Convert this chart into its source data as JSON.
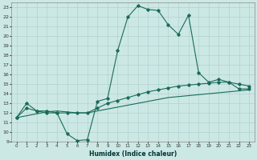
{
  "title": "",
  "xlabel": "Humidex (Indice chaleur)",
  "bg_color": "#cce8e4",
  "grid_color": "#aacccc",
  "line_color": "#1a6b5a",
  "xlim": [
    -0.5,
    23.5
  ],
  "ylim": [
    9,
    23.5
  ],
  "xticks": [
    0,
    1,
    2,
    3,
    4,
    5,
    6,
    7,
    8,
    9,
    10,
    11,
    12,
    13,
    14,
    15,
    16,
    17,
    18,
    19,
    20,
    21,
    22,
    23
  ],
  "yticks": [
    9,
    10,
    11,
    12,
    13,
    14,
    15,
    16,
    17,
    18,
    19,
    20,
    21,
    22,
    23
  ],
  "line1_x": [
    0,
    1,
    2,
    3,
    4,
    5,
    6,
    7,
    8,
    9,
    10,
    11,
    12,
    13,
    14,
    15,
    16,
    17,
    18,
    19,
    20,
    21,
    22,
    23
  ],
  "line1_y": [
    11.5,
    13.0,
    12.2,
    12.2,
    12.0,
    9.8,
    9.1,
    9.2,
    13.2,
    13.5,
    18.5,
    22.0,
    23.2,
    22.8,
    22.7,
    21.2,
    20.2,
    22.2,
    16.2,
    15.2,
    15.5,
    15.2,
    14.5,
    14.5
  ],
  "line2_x": [
    0,
    1,
    2,
    3,
    4,
    5,
    6,
    7,
    8,
    9,
    10,
    11,
    12,
    13,
    14,
    15,
    16,
    17,
    18,
    19,
    20,
    21,
    22,
    23
  ],
  "line2_y": [
    11.5,
    12.5,
    12.2,
    12.0,
    12.0,
    12.0,
    12.0,
    12.0,
    12.5,
    13.0,
    13.3,
    13.6,
    13.9,
    14.2,
    14.4,
    14.6,
    14.8,
    14.9,
    15.0,
    15.1,
    15.2,
    15.2,
    15.0,
    14.8
  ],
  "line3_x": [
    0,
    1,
    2,
    3,
    4,
    5,
    6,
    7,
    8,
    9,
    10,
    11,
    12,
    13,
    14,
    15,
    16,
    17,
    18,
    19,
    20,
    21,
    22,
    23
  ],
  "line3_y": [
    11.5,
    11.7,
    11.9,
    12.1,
    12.2,
    12.1,
    12.0,
    12.0,
    12.2,
    12.4,
    12.6,
    12.8,
    13.0,
    13.2,
    13.4,
    13.6,
    13.7,
    13.8,
    13.9,
    14.0,
    14.1,
    14.2,
    14.3,
    14.4
  ]
}
